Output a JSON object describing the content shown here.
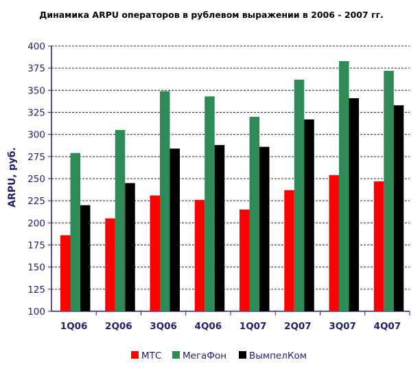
{
  "colors": {
    "axis": "#1f1f6e",
    "grid": "#1f1f6e",
    "series": [
      "#ff0000",
      "#2e8b57",
      "#000000"
    ]
  },
  "chart_data": {
    "type": "bar",
    "title": "Динамика ARPU операторов в рублевом выражении в 2006 - 2007 гг.",
    "xlabel": "",
    "ylabel": "ARPU, руб.",
    "ylim": [
      100,
      400
    ],
    "yticks": [
      "100",
      "125",
      "150",
      "175",
      "200",
      "225",
      "250",
      "275",
      "300",
      "325",
      "350",
      "375",
      "400"
    ],
    "grid": true,
    "legend_position": "bottom",
    "categories": [
      "1Q06",
      "2Q06",
      "3Q06",
      "4Q06",
      "1Q07",
      "2Q07",
      "3Q07",
      "4Q07"
    ],
    "series": [
      {
        "name": "МТС",
        "values": [
          186,
          205,
          231,
          226,
          215,
          237,
          254,
          247
        ]
      },
      {
        "name": "МегаФон",
        "values": [
          279,
          305,
          349,
          343,
          320,
          362,
          383,
          372
        ]
      },
      {
        "name": "ВымпелКом",
        "values": [
          220,
          245,
          284,
          288,
          286,
          317,
          341,
          333
        ]
      }
    ]
  }
}
